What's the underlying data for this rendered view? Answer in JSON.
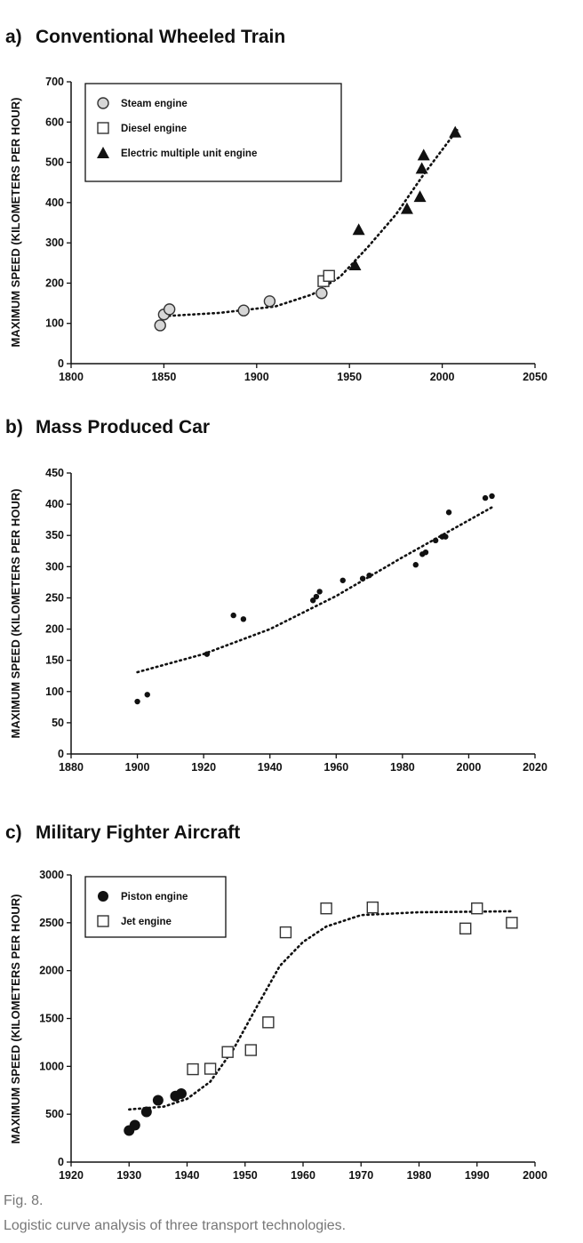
{
  "chart_data": [
    {
      "type": "scatter",
      "panel_label": "a)",
      "title": "Conventional Wheeled Train",
      "xlabel": "",
      "ylabel": "MAXIMUM SPEED (KILOMETERS PER HOUR)",
      "xlim": [
        1800,
        2050
      ],
      "ylim": [
        0,
        700
      ],
      "xticks": [
        "1800",
        "1850",
        "1900",
        "1950",
        "2000",
        "2050"
      ],
      "yticks": [
        "0",
        "100",
        "200",
        "300",
        "400",
        "500",
        "600",
        "700"
      ],
      "legend_position": "top-left",
      "series": [
        {
          "name": "Steam engine",
          "marker": "circle-gray",
          "points": [
            [
              1848,
              95
            ],
            [
              1850,
              122
            ],
            [
              1853,
              135
            ],
            [
              1893,
              132
            ],
            [
              1907,
              155
            ],
            [
              1935,
              175
            ]
          ]
        },
        {
          "name": "Diesel engine",
          "marker": "square-open",
          "points": [
            [
              1936,
              205
            ],
            [
              1939,
              218
            ]
          ]
        },
        {
          "name": "Electric multiple unit engine",
          "marker": "triangle-filled",
          "points": [
            [
              1953,
              245
            ],
            [
              1955,
              333
            ],
            [
              1981,
              385
            ],
            [
              1988,
              415
            ],
            [
              1989,
              485
            ],
            [
              1990,
              518
            ],
            [
              2007,
              575
            ]
          ]
        }
      ],
      "trend": [
        [
          1850,
          118
        ],
        [
          1880,
          126
        ],
        [
          1910,
          142
        ],
        [
          1930,
          172
        ],
        [
          1945,
          216
        ],
        [
          1960,
          290
        ],
        [
          1975,
          370
        ],
        [
          1990,
          470
        ],
        [
          2008,
          580
        ]
      ]
    },
    {
      "type": "scatter",
      "panel_label": "b)",
      "title": "Mass Produced Car",
      "xlabel": "",
      "ylabel": "MAXIMUM SPEED (KILOMETERS PER HOUR)",
      "xlim": [
        1880,
        2020
      ],
      "ylim": [
        0,
        450
      ],
      "xticks": [
        "1880",
        "1900",
        "1920",
        "1940",
        "1960",
        "1980",
        "2000",
        "2020"
      ],
      "yticks": [
        "0",
        "50",
        "100",
        "150",
        "200",
        "250",
        "300",
        "350",
        "400",
        "450"
      ],
      "series": [
        {
          "name": "Mass produced car",
          "marker": "dot",
          "points": [
            [
              1900,
              84
            ],
            [
              1903,
              95
            ],
            [
              1921,
              160
            ],
            [
              1929,
              222
            ],
            [
              1932,
              216
            ],
            [
              1953,
              246
            ],
            [
              1954,
              252
            ],
            [
              1955,
              260
            ],
            [
              1962,
              278
            ],
            [
              1968,
              281
            ],
            [
              1970,
              286
            ],
            [
              1984,
              303
            ],
            [
              1986,
              320
            ],
            [
              1987,
              323
            ],
            [
              1990,
              342
            ],
            [
              1992,
              348
            ],
            [
              1993,
              348
            ],
            [
              1994,
              387
            ],
            [
              2005,
              410
            ],
            [
              2007,
              413
            ]
          ]
        }
      ],
      "trend": [
        [
          1900,
          131
        ],
        [
          1920,
          160
        ],
        [
          1940,
          200
        ],
        [
          1960,
          253
        ],
        [
          1980,
          315
        ],
        [
          2007,
          395
        ]
      ]
    },
    {
      "type": "scatter",
      "panel_label": "c)",
      "title": "Military Fighter Aircraft",
      "xlabel": "",
      "ylabel": "MAXIMUM SPEED (KILOMETERS PER HOUR)",
      "xlim": [
        1920,
        2000
      ],
      "ylim": [
        0,
        3000
      ],
      "xticks": [
        "1920",
        "1930",
        "1940",
        "1950",
        "1960",
        "1970",
        "1980",
        "1990",
        "2000"
      ],
      "yticks": [
        "0",
        "500",
        "1000",
        "1500",
        "2000",
        "2500",
        "3000"
      ],
      "legend_position": "top-left",
      "series": [
        {
          "name": "Piston engine",
          "marker": "circle-filled",
          "points": [
            [
              1930,
              330
            ],
            [
              1931,
              385
            ],
            [
              1933,
              525
            ],
            [
              1935,
              645
            ],
            [
              1938,
              690
            ],
            [
              1939,
              715
            ]
          ]
        },
        {
          "name": "Jet engine",
          "marker": "square-open",
          "points": [
            [
              1941,
              970
            ],
            [
              1944,
              975
            ],
            [
              1947,
              1150
            ],
            [
              1951,
              1170
            ],
            [
              1954,
              1460
            ],
            [
              1957,
              2400
            ],
            [
              1964,
              2650
            ],
            [
              1972,
              2660
            ],
            [
              1988,
              2440
            ],
            [
              1990,
              2650
            ],
            [
              1996,
              2500
            ]
          ]
        }
      ],
      "trend": [
        [
          1930,
          550
        ],
        [
          1936,
          580
        ],
        [
          1940,
          660
        ],
        [
          1944,
          840
        ],
        [
          1948,
          1180
        ],
        [
          1952,
          1620
        ],
        [
          1956,
          2050
        ],
        [
          1960,
          2300
        ],
        [
          1964,
          2460
        ],
        [
          1970,
          2580
        ],
        [
          1980,
          2610
        ],
        [
          1996,
          2620
        ]
      ]
    }
  ],
  "caption": {
    "label": "Fig. 8.",
    "text": "Logistic curve analysis of three transport technologies."
  }
}
